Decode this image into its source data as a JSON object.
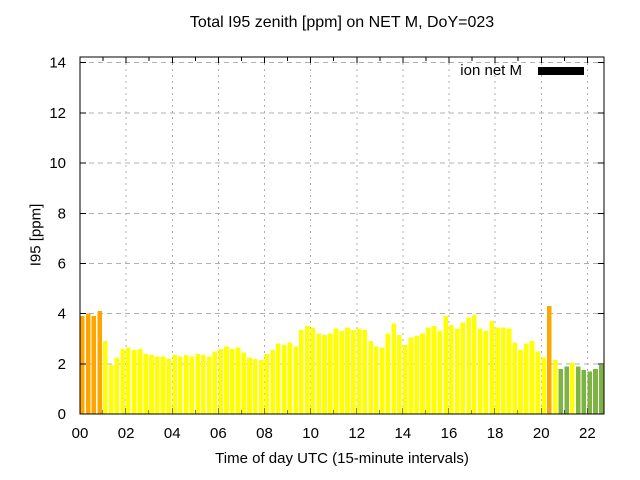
{
  "chart_data": {
    "type": "bar",
    "title": "Total I95 zenith [ppm] on NET M, DoY=023",
    "xlabel": "Time of day UTC (15-minute intervals)",
    "ylabel": "I95 [ppm]",
    "ylim": [
      0,
      14.25
    ],
    "yticks": [
      0,
      2,
      4,
      6,
      8,
      10,
      12,
      14
    ],
    "xtick_hours": [
      0,
      2,
      4,
      6,
      8,
      10,
      12,
      14,
      16,
      18,
      20,
      22
    ],
    "xtick_labels": [
      "00",
      "02",
      "04",
      "06",
      "08",
      "10",
      "12",
      "14",
      "16",
      "18",
      "20",
      "22"
    ],
    "minor_xtick_hours": [
      1,
      3,
      5,
      7,
      9,
      11,
      13,
      15,
      17,
      19,
      21
    ],
    "x_hours_range": [
      0,
      22.72
    ],
    "grid": true,
    "interval_minutes": 15,
    "legend": {
      "label": "ion net M",
      "swatch_color": "#000000",
      "position": "top-right"
    },
    "palette": {
      "orange": "#FFA500",
      "yellow": "#FFFF00",
      "green": "#7CB342"
    },
    "grid_color": "#b0b0b0",
    "border_color": "#000000",
    "times": [
      "00:00",
      "00:15",
      "00:30",
      "00:45",
      "01:00",
      "01:15",
      "01:30",
      "01:45",
      "02:00",
      "02:15",
      "02:30",
      "02:45",
      "03:00",
      "03:15",
      "03:30",
      "03:45",
      "04:00",
      "04:15",
      "04:30",
      "04:45",
      "05:00",
      "05:15",
      "05:30",
      "05:45",
      "06:00",
      "06:15",
      "06:30",
      "06:45",
      "07:00",
      "07:15",
      "07:30",
      "07:45",
      "08:00",
      "08:15",
      "08:30",
      "08:45",
      "09:00",
      "09:15",
      "09:30",
      "09:45",
      "10:00",
      "10:15",
      "10:30",
      "10:45",
      "11:00",
      "11:15",
      "11:30",
      "11:45",
      "12:00",
      "12:15",
      "12:30",
      "12:45",
      "13:00",
      "13:15",
      "13:30",
      "13:45",
      "14:00",
      "14:15",
      "14:30",
      "14:45",
      "15:00",
      "15:15",
      "15:30",
      "15:45",
      "16:00",
      "16:15",
      "16:30",
      "16:45",
      "17:00",
      "17:15",
      "17:30",
      "17:45",
      "18:00",
      "18:15",
      "18:30",
      "18:45",
      "19:00",
      "19:15",
      "19:30",
      "19:45",
      "20:00",
      "20:15",
      "20:30",
      "20:45",
      "21:00",
      "21:15",
      "21:30",
      "21:45",
      "22:00",
      "22:15",
      "22:30"
    ],
    "values": [
      3.9,
      4.0,
      3.9,
      4.1,
      2.9,
      1.95,
      2.25,
      2.6,
      2.65,
      2.55,
      2.6,
      2.4,
      2.35,
      2.3,
      2.3,
      2.2,
      2.35,
      2.3,
      2.35,
      2.3,
      2.4,
      2.35,
      2.3,
      2.5,
      2.6,
      2.7,
      2.6,
      2.65,
      2.45,
      2.25,
      2.2,
      2.15,
      2.4,
      2.55,
      2.8,
      2.75,
      2.85,
      2.7,
      3.35,
      3.5,
      3.45,
      3.2,
      3.15,
      3.2,
      3.4,
      3.3,
      3.45,
      3.35,
      3.4,
      3.35,
      2.9,
      2.7,
      2.65,
      3.2,
      3.6,
      3.15,
      2.75,
      3.05,
      3.1,
      3.2,
      3.45,
      3.5,
      3.3,
      3.9,
      3.55,
      3.4,
      3.65,
      3.85,
      3.95,
      3.4,
      3.3,
      3.7,
      3.45,
      3.45,
      3.4,
      2.85,
      2.55,
      2.8,
      2.9,
      2.5,
      2.25,
      4.3,
      2.15,
      1.8,
      1.9,
      2.05,
      1.9,
      1.75,
      1.7,
      1.8,
      1.95
    ],
    "colors": [
      "orange",
      "orange",
      "orange",
      "orange",
      "yellow",
      "yellow",
      "yellow",
      "yellow",
      "yellow",
      "yellow",
      "yellow",
      "yellow",
      "yellow",
      "yellow",
      "yellow",
      "yellow",
      "yellow",
      "yellow",
      "yellow",
      "yellow",
      "yellow",
      "yellow",
      "yellow",
      "yellow",
      "yellow",
      "yellow",
      "yellow",
      "yellow",
      "yellow",
      "yellow",
      "yellow",
      "yellow",
      "yellow",
      "yellow",
      "yellow",
      "yellow",
      "yellow",
      "yellow",
      "yellow",
      "yellow",
      "yellow",
      "yellow",
      "yellow",
      "yellow",
      "yellow",
      "yellow",
      "yellow",
      "yellow",
      "yellow",
      "yellow",
      "yellow",
      "yellow",
      "yellow",
      "yellow",
      "yellow",
      "yellow",
      "yellow",
      "yellow",
      "yellow",
      "yellow",
      "yellow",
      "yellow",
      "yellow",
      "yellow",
      "yellow",
      "yellow",
      "yellow",
      "yellow",
      "yellow",
      "yellow",
      "yellow",
      "yellow",
      "yellow",
      "yellow",
      "yellow",
      "yellow",
      "yellow",
      "yellow",
      "yellow",
      "yellow",
      "yellow",
      "orange",
      "yellow",
      "green",
      "green",
      "yellow",
      "green",
      "green",
      "green",
      "green",
      "green"
    ]
  }
}
